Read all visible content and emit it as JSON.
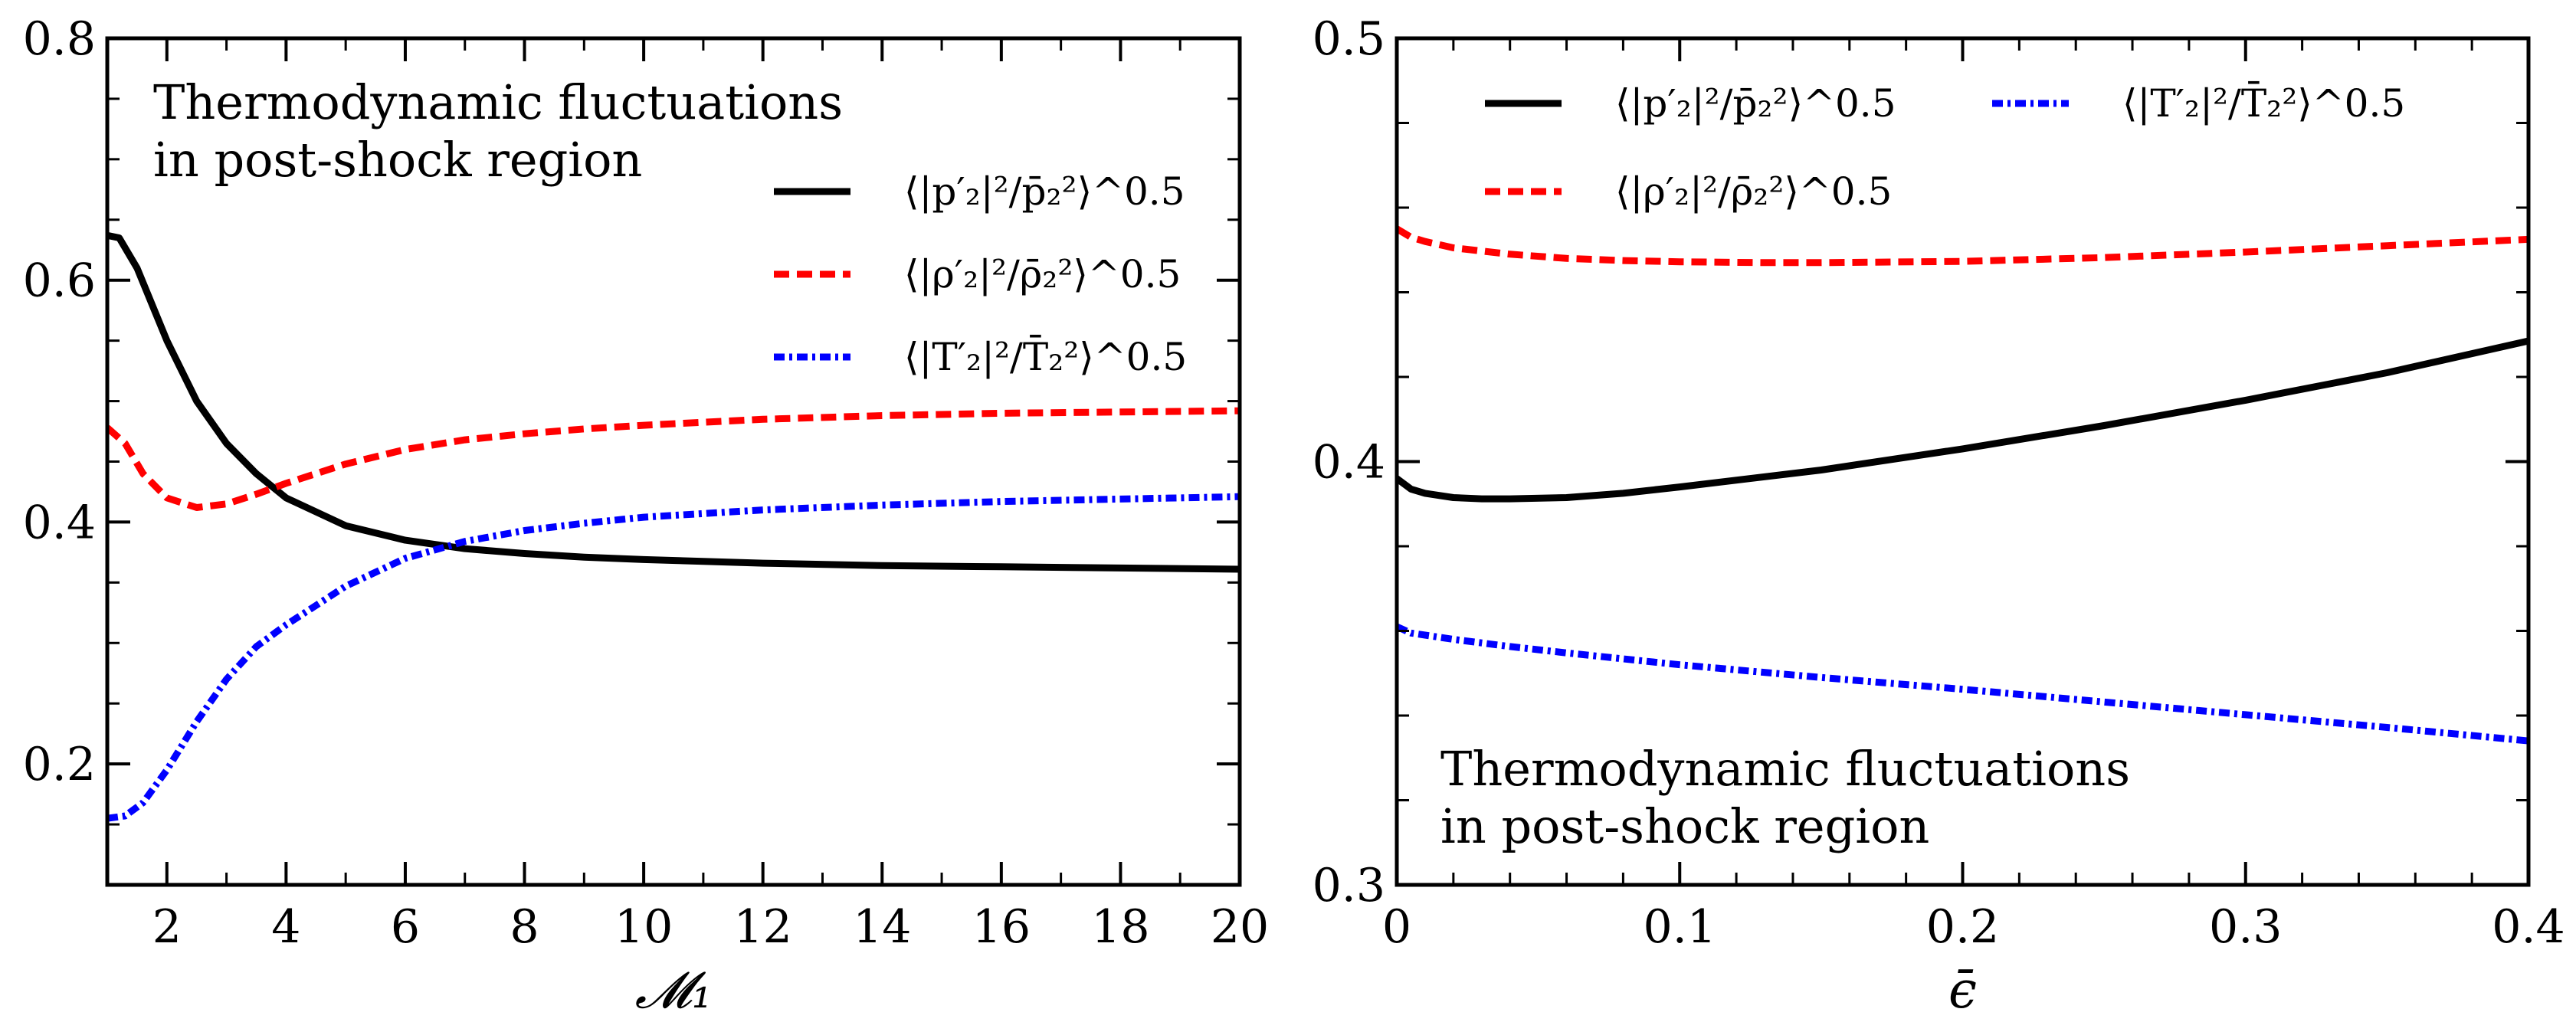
{
  "chart_data": [
    {
      "type": "line",
      "xlabel": "𝓜₁",
      "ylabel": "",
      "xlim": [
        1,
        20
      ],
      "ylim": [
        0.1,
        0.8
      ],
      "xticks": [
        2,
        4,
        6,
        8,
        10,
        12,
        14,
        16,
        18,
        20
      ],
      "yticks": [
        0.2,
        0.4,
        0.6,
        0.8
      ],
      "xtick_labels": [
        "2",
        "4",
        "6",
        "8",
        "10",
        "12",
        "14",
        "16",
        "18",
        "20"
      ],
      "ytick_labels": [
        "0.2",
        "0.4",
        "0.6",
        "0.8"
      ],
      "annotation": [
        "Thermodynamic fluctuations",
        "in post-shock region"
      ],
      "legend_position": "right",
      "series": [
        {
          "name": "⟨|p′₂|²/p̄₂²⟩^0.5",
          "color": "#000000",
          "style": "solid",
          "x": [
            1.0,
            1.2,
            1.5,
            2.0,
            2.5,
            3.0,
            3.5,
            4.0,
            5.0,
            6.0,
            7.0,
            8.0,
            9.0,
            10.0,
            12.0,
            14.0,
            16.0,
            18.0,
            20.0
          ],
          "y": [
            0.637,
            0.635,
            0.61,
            0.55,
            0.5,
            0.465,
            0.44,
            0.42,
            0.397,
            0.385,
            0.378,
            0.374,
            0.371,
            0.369,
            0.366,
            0.364,
            0.363,
            0.362,
            0.361
          ]
        },
        {
          "name": "⟨|ρ′₂|²/ρ̄₂²⟩^0.5",
          "color": "#ff0000",
          "style": "dashed",
          "x": [
            1.0,
            1.3,
            1.6,
            2.0,
            2.5,
            3.0,
            3.5,
            4.0,
            5.0,
            6.0,
            7.0,
            8.0,
            9.0,
            10.0,
            12.0,
            14.0,
            16.0,
            18.0,
            20.0
          ],
          "y": [
            0.478,
            0.465,
            0.44,
            0.42,
            0.412,
            0.415,
            0.423,
            0.432,
            0.448,
            0.46,
            0.468,
            0.473,
            0.477,
            0.48,
            0.485,
            0.488,
            0.49,
            0.491,
            0.492
          ]
        },
        {
          "name": "⟨|T′₂|²/T̄₂²⟩^0.5",
          "color": "#0000ff",
          "style": "dashdot",
          "x": [
            1.0,
            1.3,
            1.6,
            2.0,
            2.5,
            3.0,
            3.5,
            4.0,
            5.0,
            6.0,
            7.0,
            8.0,
            9.0,
            10.0,
            12.0,
            14.0,
            16.0,
            18.0,
            20.0
          ],
          "y": [
            0.155,
            0.157,
            0.168,
            0.195,
            0.235,
            0.27,
            0.297,
            0.315,
            0.347,
            0.37,
            0.384,
            0.393,
            0.399,
            0.404,
            0.41,
            0.414,
            0.417,
            0.419,
            0.421
          ]
        }
      ]
    },
    {
      "type": "line",
      "xlabel": "ϵ̄",
      "ylabel": "",
      "xlim": [
        0,
        0.4
      ],
      "ylim": [
        0.3,
        0.5
      ],
      "xticks": [
        0,
        0.1,
        0.2,
        0.3,
        0.4
      ],
      "yticks": [
        0.3,
        0.4,
        0.5
      ],
      "xtick_labels": [
        "0",
        "0.1",
        "0.2",
        "0.3",
        "0.4"
      ],
      "ytick_labels": [
        "0.3",
        "0.4",
        "0.5"
      ],
      "annotation": [
        "Thermodynamic fluctuations",
        "in post-shock region"
      ],
      "legend_position": "top",
      "series": [
        {
          "name": "⟨|p′₂|²/p̄₂²⟩^0.5",
          "color": "#000000",
          "style": "solid",
          "x": [
            0.0,
            0.005,
            0.01,
            0.02,
            0.03,
            0.04,
            0.06,
            0.08,
            0.1,
            0.15,
            0.2,
            0.25,
            0.3,
            0.35,
            0.4
          ],
          "y": [
            0.396,
            0.3935,
            0.3925,
            0.3915,
            0.3912,
            0.3912,
            0.3915,
            0.3925,
            0.394,
            0.398,
            0.403,
            0.4085,
            0.4145,
            0.421,
            0.4285
          ]
        },
        {
          "name": "⟨|ρ′₂|²/ρ̄₂²⟩^0.5",
          "color": "#ff0000",
          "style": "dashed",
          "x": [
            0.0,
            0.005,
            0.01,
            0.02,
            0.04,
            0.06,
            0.08,
            0.1,
            0.13,
            0.15,
            0.2,
            0.25,
            0.3,
            0.35,
            0.4
          ],
          "y": [
            0.455,
            0.453,
            0.452,
            0.4505,
            0.449,
            0.448,
            0.4475,
            0.4472,
            0.447,
            0.447,
            0.4473,
            0.4482,
            0.4495,
            0.451,
            0.4525
          ]
        },
        {
          "name": "⟨|T′₂|²/T̄₂²⟩^0.5",
          "color": "#0000ff",
          "style": "dashdot",
          "x": [
            0.0,
            0.005,
            0.01,
            0.02,
            0.04,
            0.06,
            0.08,
            0.1,
            0.15,
            0.2,
            0.25,
            0.3,
            0.35,
            0.4
          ],
          "y": [
            0.361,
            0.3595,
            0.359,
            0.358,
            0.3563,
            0.3548,
            0.3534,
            0.352,
            0.349,
            0.3462,
            0.3432,
            0.3402,
            0.3372,
            0.334
          ]
        }
      ]
    }
  ]
}
